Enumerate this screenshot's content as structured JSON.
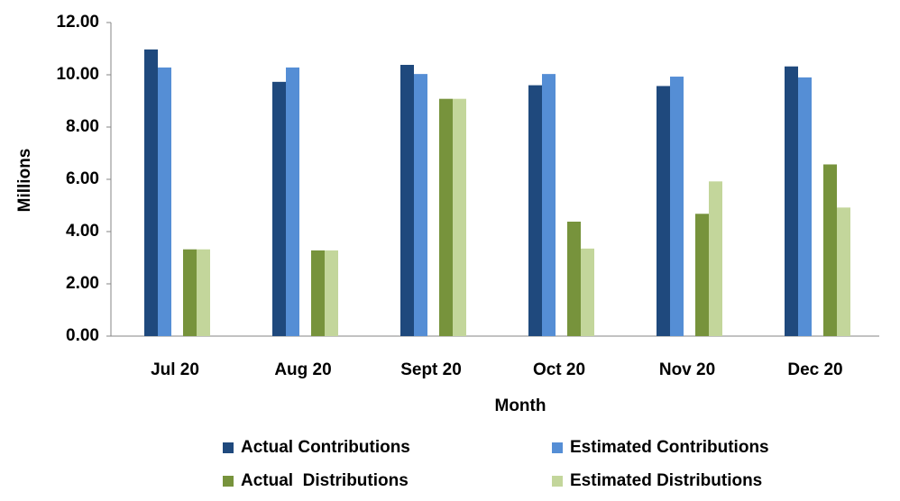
{
  "chart_data": {
    "type": "bar",
    "x_label": "Month",
    "y_label": "Millions",
    "categories": [
      "Jul 20",
      "Aug 20",
      "Sept 20",
      "Oct 20",
      "Nov 20",
      "Dec 20"
    ],
    "series": [
      {
        "name": "Actual Contributions",
        "color": "#1f497d",
        "values": [
          10.97,
          9.73,
          10.38,
          9.6,
          9.57,
          10.32
        ]
      },
      {
        "name": "Estimated Contributions",
        "color": "#558ed5",
        "values": [
          10.28,
          10.28,
          10.03,
          10.03,
          9.93,
          9.9
        ]
      },
      {
        "name": "Actual  Distributions",
        "color": "#77933c",
        "values": [
          3.32,
          3.28,
          9.08,
          4.38,
          4.68,
          6.57
        ]
      },
      {
        "name": "Estimated Distributions",
        "color": "#c3d69b",
        "values": [
          3.32,
          3.28,
          9.08,
          3.35,
          5.92,
          4.92
        ]
      }
    ],
    "ylim": [
      0,
      12
    ],
    "yticks": [
      {
        "value": 0,
        "label": "0.00"
      },
      {
        "value": 2,
        "label": "2.00"
      },
      {
        "value": 4,
        "label": "4.00"
      },
      {
        "value": 6,
        "label": "6.00"
      },
      {
        "value": 8,
        "label": "8.00"
      },
      {
        "value": 10,
        "label": "10.00"
      },
      {
        "value": 12,
        "label": "12.00"
      }
    ],
    "grid": false,
    "legend": "bottom"
  }
}
